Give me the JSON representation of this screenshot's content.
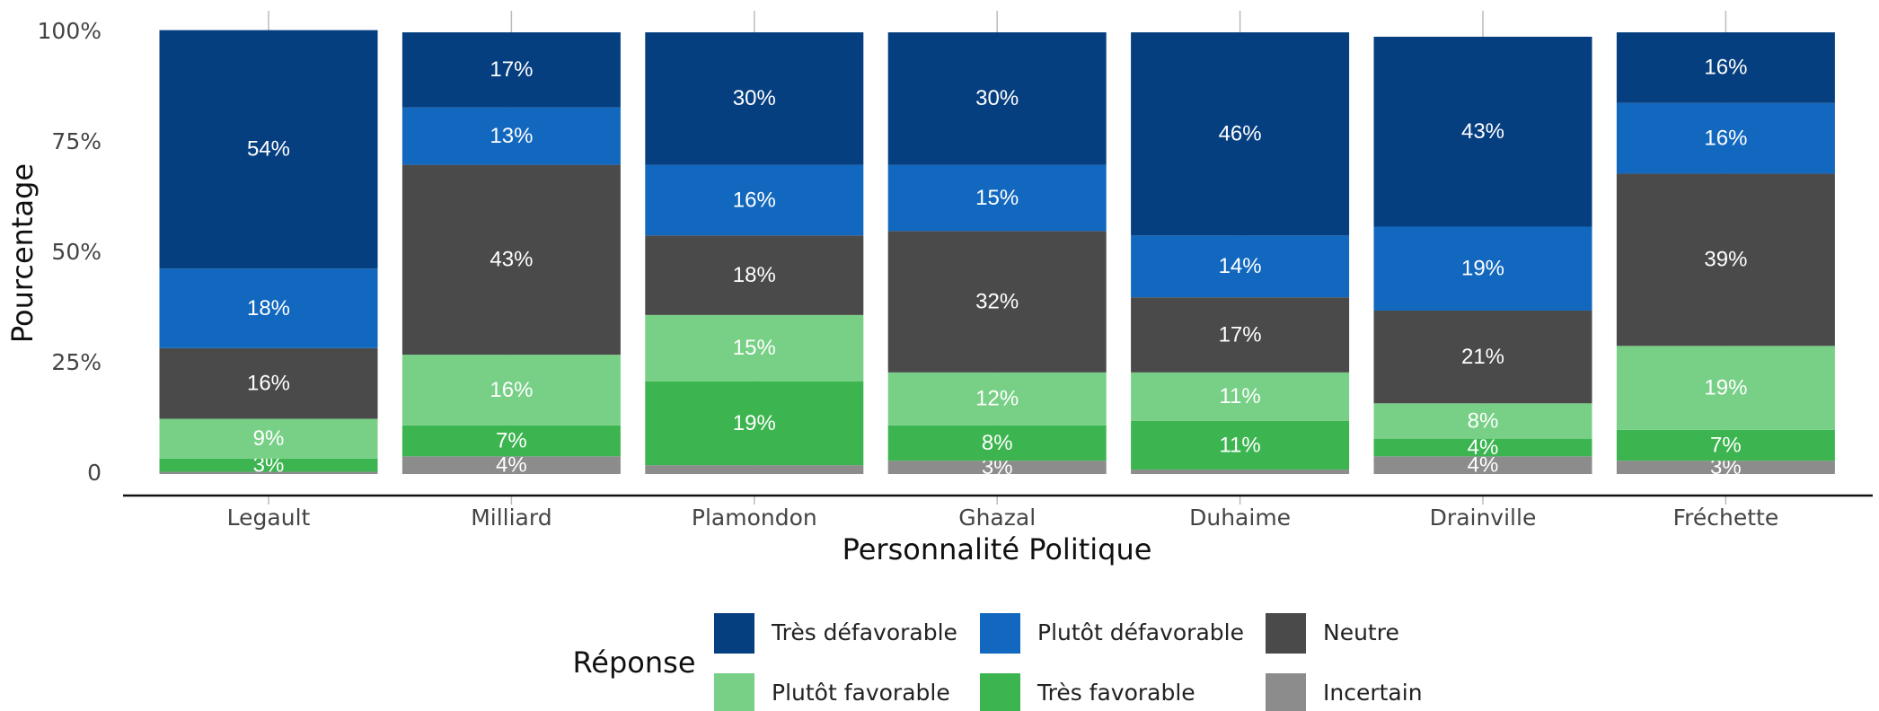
{
  "chart_data": {
    "type": "stacked_bar",
    "x_label": "Personnalité Politique",
    "y_label": "Pourcentage",
    "legend_title": "Réponse",
    "categories": [
      "Legault",
      "Milliard",
      "Plamondon",
      "Ghazal",
      "Duhaime",
      "Drainville",
      "Fréchette"
    ],
    "ylim": [
      0,
      100
    ],
    "yticks": [
      0,
      {
        "value": 25,
        "label": "25%"
      },
      {
        "value": 50,
        "label": "50%"
      },
      {
        "value": 75,
        "label": "75%"
      },
      {
        "value": 100,
        "label": "100%"
      }
    ],
    "series": [
      {
        "name": "Très défavorable",
        "color": "#063f80",
        "values": [
          54,
          17,
          30,
          30,
          46,
          43,
          16
        ],
        "value_labels": [
          "54%",
          "17%",
          "30%",
          "30%",
          "46%",
          "43%",
          "16%"
        ]
      },
      {
        "name": "Plutôt défavorable",
        "color": "#1268be",
        "values": [
          18,
          13,
          16,
          15,
          14,
          19,
          16
        ],
        "value_labels": [
          "18%",
          "13%",
          "16%",
          "15%",
          "14%",
          "19%",
          "16%"
        ]
      },
      {
        "name": "Neutre",
        "color": "#4a4a4a",
        "values": [
          16,
          43,
          18,
          32,
          17,
          21,
          39
        ],
        "value_labels": [
          "16%",
          "43%",
          "18%",
          "32%",
          "17%",
          "21%",
          "39%"
        ]
      },
      {
        "name": "Plutôt favorable",
        "color": "#77d086",
        "values": [
          9,
          16,
          15,
          12,
          11,
          8,
          19
        ],
        "value_labels": [
          "9%",
          "16%",
          "15%",
          "12%",
          "11%",
          "8%",
          "19%"
        ]
      },
      {
        "name": "Très favorable",
        "color": "#3cb550",
        "values": [
          3,
          7,
          19,
          8,
          11,
          4,
          7
        ],
        "value_labels": [
          "3%",
          "7%",
          "19%",
          "8%",
          "11%",
          "4%",
          "7%"
        ]
      },
      {
        "name": "Incertain",
        "color": "#8c8c8c",
        "values": [
          0.5,
          4,
          2,
          3,
          1,
          4,
          3
        ],
        "value_labels": [
          null,
          "4%",
          null,
          "3%",
          null,
          "4%",
          "3%"
        ]
      }
    ]
  }
}
